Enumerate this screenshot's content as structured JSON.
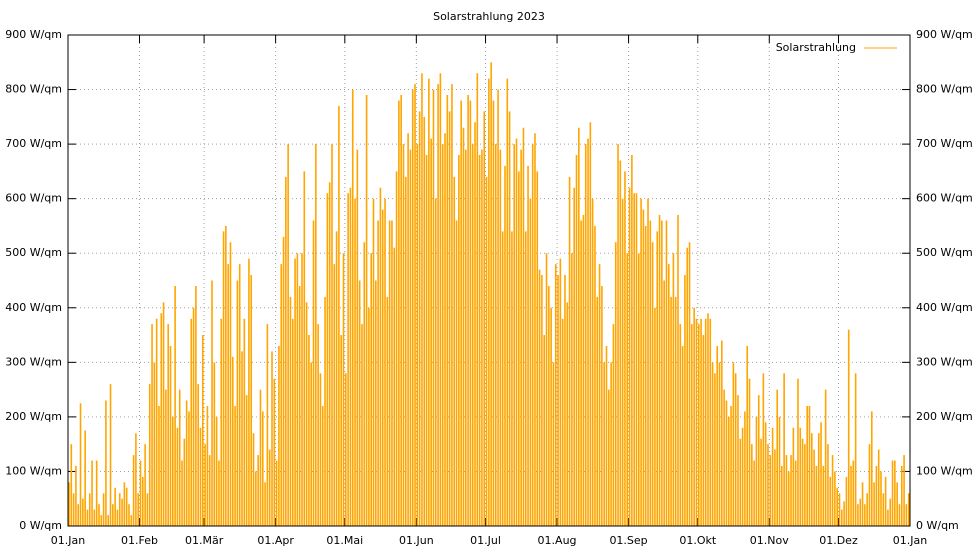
{
  "chart_data": {
    "type": "impulse",
    "title": "Solarstrahlung 2023",
    "legend": "top-right",
    "grid": true,
    "xlim": [
      0,
      365
    ],
    "xticks": [
      {
        "value": 0,
        "label": "01.Jan"
      },
      {
        "value": 31,
        "label": "01.Feb"
      },
      {
        "value": 59,
        "label": "01.Mär"
      },
      {
        "value": 90,
        "label": "01.Apr"
      },
      {
        "value": 120,
        "label": "01.Mai"
      },
      {
        "value": 151,
        "label": "01.Jun"
      },
      {
        "value": 181,
        "label": "01.Jul"
      },
      {
        "value": 212,
        "label": "01.Aug"
      },
      {
        "value": 243,
        "label": "01.Sep"
      },
      {
        "value": 273,
        "label": "01.Okt"
      },
      {
        "value": 304,
        "label": "01.Nov"
      },
      {
        "value": 334,
        "label": "01.Dez"
      },
      {
        "value": 365,
        "label": "01.Jan"
      }
    ],
    "ylim": [
      0,
      900
    ],
    "yticks": [
      {
        "value": 0,
        "label": "0 W/qm"
      },
      {
        "value": 100,
        "label": "100 W/qm"
      },
      {
        "value": 200,
        "label": "200 W/qm"
      },
      {
        "value": 300,
        "label": "300 W/qm"
      },
      {
        "value": 400,
        "label": "400 W/qm"
      },
      {
        "value": 500,
        "label": "500 W/qm"
      },
      {
        "value": 600,
        "label": "600 W/qm"
      },
      {
        "value": 700,
        "label": "700 W/qm"
      },
      {
        "value": 800,
        "label": "800 W/qm"
      },
      {
        "value": 900,
        "label": "900 W/qm"
      }
    ],
    "x": [
      0,
      1,
      2,
      3,
      4,
      5,
      6,
      7,
      8,
      9,
      10,
      11,
      12,
      13,
      14,
      15,
      16,
      17,
      18,
      19,
      20,
      21,
      22,
      23,
      24,
      25,
      26,
      27,
      28,
      29,
      30,
      31,
      32,
      33,
      34,
      35,
      36,
      37,
      38,
      39,
      40,
      41,
      42,
      43,
      44,
      45,
      46,
      47,
      48,
      49,
      50,
      51,
      52,
      53,
      54,
      55,
      56,
      57,
      58,
      59,
      60,
      61,
      62,
      63,
      64,
      65,
      66,
      67,
      68,
      69,
      70,
      71,
      72,
      73,
      74,
      75,
      76,
      77,
      78,
      79,
      80,
      81,
      82,
      83,
      84,
      85,
      86,
      87,
      88,
      89,
      90,
      91,
      92,
      93,
      94,
      95,
      96,
      97,
      98,
      99,
      100,
      101,
      102,
      103,
      104,
      105,
      106,
      107,
      108,
      109,
      110,
      111,
      112,
      113,
      114,
      115,
      116,
      117,
      118,
      119,
      120,
      121,
      122,
      123,
      124,
      125,
      126,
      127,
      128,
      129,
      130,
      131,
      132,
      133,
      134,
      135,
      136,
      137,
      138,
      139,
      140,
      141,
      142,
      143,
      144,
      145,
      146,
      147,
      148,
      149,
      150,
      151,
      152,
      153,
      154,
      155,
      156,
      157,
      158,
      159,
      160,
      161,
      162,
      163,
      164,
      165,
      166,
      167,
      168,
      169,
      170,
      171,
      172,
      173,
      174,
      175,
      176,
      177,
      178,
      179,
      180,
      181,
      182,
      183,
      184,
      185,
      186,
      187,
      188,
      189,
      190,
      191,
      192,
      193,
      194,
      195,
      196,
      197,
      198,
      199,
      200,
      201,
      202,
      203,
      204,
      205,
      206,
      207,
      208,
      209,
      210,
      211,
      212,
      213,
      214,
      215,
      216,
      217,
      218,
      219,
      220,
      221,
      222,
      223,
      224,
      225,
      226,
      227,
      228,
      229,
      230,
      231,
      232,
      233,
      234,
      235,
      236,
      237,
      238,
      239,
      240,
      241,
      242,
      243,
      244,
      245,
      246,
      247,
      248,
      249,
      250,
      251,
      252,
      253,
      254,
      255,
      256,
      257,
      258,
      259,
      260,
      261,
      262,
      263,
      264,
      265,
      266,
      267,
      268,
      269,
      270,
      271,
      272,
      273,
      274,
      275,
      276,
      277,
      278,
      279,
      280,
      281,
      282,
      283,
      284,
      285,
      286,
      287,
      288,
      289,
      290,
      291,
      292,
      293,
      294,
      295,
      296,
      297,
      298,
      299,
      300,
      301,
      302,
      303,
      304,
      305,
      306,
      307,
      308,
      309,
      310,
      311,
      312,
      313,
      314,
      315,
      316,
      317,
      318,
      319,
      320,
      321,
      322,
      323,
      324,
      325,
      326,
      327,
      328,
      329,
      330,
      331,
      332,
      333,
      334,
      335,
      336,
      337,
      338,
      339,
      340,
      341,
      342,
      343,
      344,
      345,
      346,
      347,
      348,
      349,
      350,
      351,
      352,
      353,
      354,
      355,
      356,
      357,
      358,
      359,
      360,
      361,
      362,
      363,
      364
    ],
    "series": [
      {
        "name": "Solarstrahlung",
        "color": "#ffa500",
        "values": [
          80,
          150,
          60,
          110,
          40,
          225,
          50,
          175,
          30,
          60,
          120,
          30,
          120,
          40,
          20,
          60,
          230,
          20,
          260,
          40,
          70,
          30,
          60,
          50,
          80,
          70,
          40,
          20,
          130,
          170,
          60,
          120,
          90,
          150,
          60,
          260,
          370,
          300,
          380,
          220,
          390,
          410,
          250,
          370,
          330,
          200,
          440,
          180,
          250,
          120,
          160,
          230,
          210,
          380,
          400,
          440,
          260,
          180,
          350,
          150,
          220,
          130,
          450,
          300,
          200,
          120,
          380,
          540,
          550,
          480,
          520,
          310,
          220,
          450,
          480,
          320,
          380,
          240,
          490,
          460,
          170,
          100,
          130,
          250,
          210,
          80,
          370,
          140,
          320,
          270,
          120,
          330,
          480,
          530,
          640,
          700,
          420,
          380,
          490,
          500,
          440,
          500,
          650,
          410,
          350,
          300,
          560,
          700,
          370,
          280,
          220,
          420,
          610,
          630,
          700,
          480,
          540,
          770,
          350,
          500,
          280,
          610,
          620,
          800,
          600,
          690,
          450,
          370,
          520,
          790,
          400,
          500,
          600,
          450,
          560,
          620,
          580,
          600,
          420,
          560,
          560,
          510,
          650,
          780,
          790,
          700,
          640,
          720,
          690,
          800,
          810,
          700,
          760,
          830,
          750,
          680,
          820,
          710,
          800,
          600,
          810,
          830,
          700,
          720,
          790,
          760,
          810,
          640,
          560,
          680,
          780,
          730,
          690,
          790,
          780,
          700,
          740,
          830,
          680,
          690,
          760,
          640,
          820,
          850,
          780,
          700,
          800,
          690,
          540,
          660,
          820,
          760,
          540,
          700,
          710,
          650,
          690,
          730,
          540,
          660,
          600,
          700,
          720,
          650,
          470,
          460,
          350,
          500,
          440,
          400,
          300,
          480,
          460,
          490,
          380,
          460,
          410,
          640,
          500,
          620,
          680,
          730,
          560,
          570,
          700,
          710,
          740,
          600,
          550,
          420,
          480,
          440,
          300,
          330,
          250,
          300,
          370,
          520,
          700,
          670,
          600,
          650,
          500,
          620,
          680,
          610,
          610,
          500,
          600,
          580,
          550,
          600,
          560,
          520,
          400,
          540,
          570,
          560,
          450,
          560,
          480,
          420,
          500,
          420,
          570,
          370,
          330,
          460,
          510,
          520,
          370,
          400,
          380,
          370,
          380,
          350,
          380,
          390,
          380,
          300,
          280,
          330,
          300,
          340,
          250,
          230,
          200,
          220,
          300,
          280,
          240,
          160,
          180,
          210,
          330,
          270,
          150,
          120,
          200,
          240,
          160,
          280,
          190,
          150,
          130,
          180,
          140,
          250,
          200,
          110,
          280,
          130,
          100,
          130,
          180,
          120,
          270,
          180,
          160,
          150,
          220,
          220,
          170,
          140,
          110,
          170,
          190,
          110,
          250,
          150,
          90,
          130,
          100,
          70,
          60,
          30,
          45,
          90,
          360,
          110,
          120,
          280,
          40,
          50,
          80,
          40,
          60,
          150,
          210,
          80,
          110,
          140,
          100,
          60,
          90,
          30,
          50,
          120,
          120,
          80,
          40,
          110,
          130,
          40,
          60
        ]
      }
    ]
  }
}
